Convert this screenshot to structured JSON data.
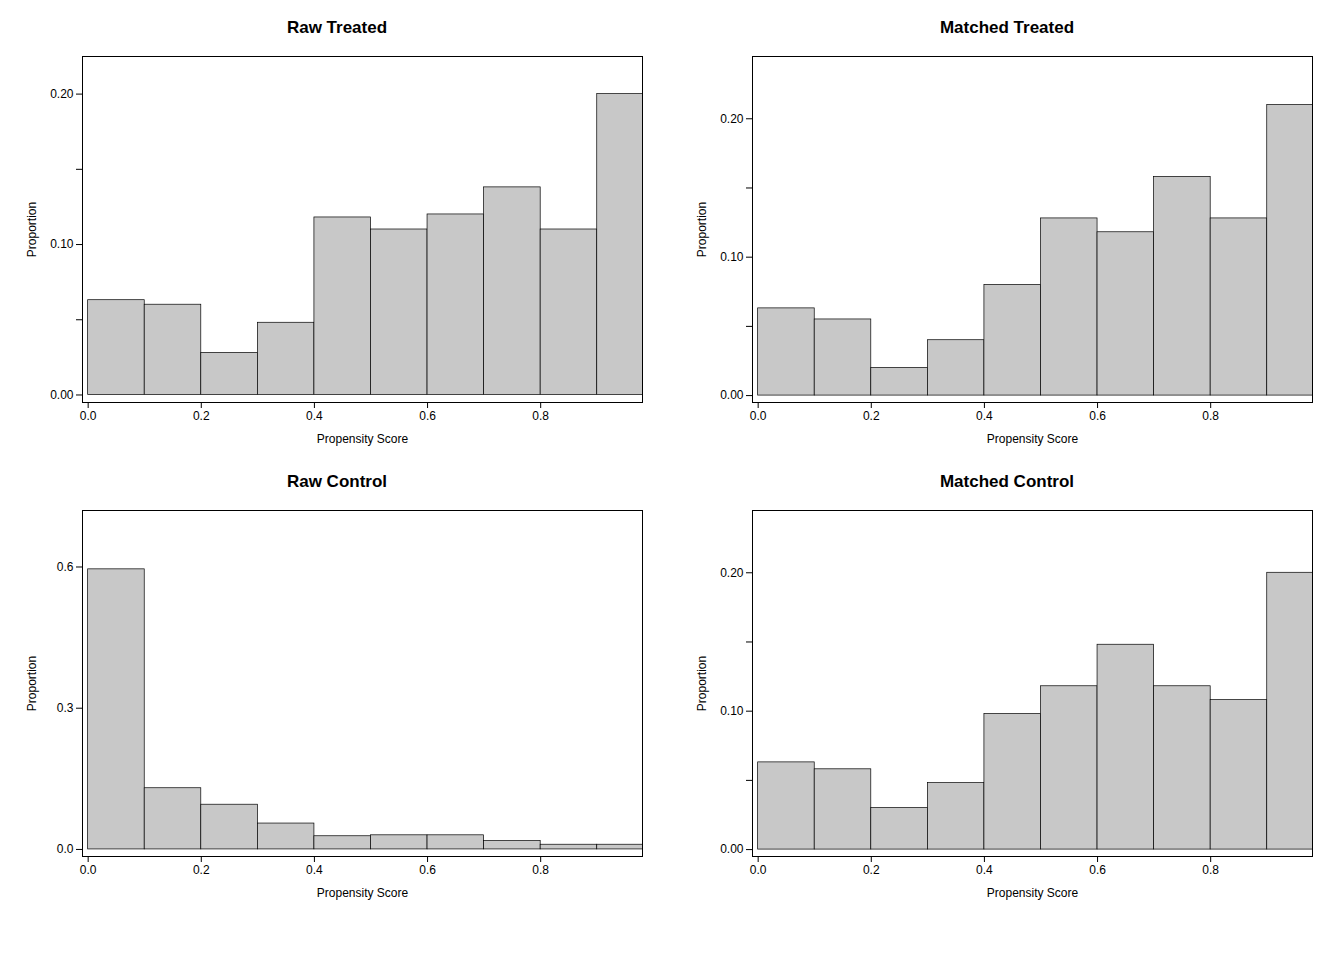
{
  "chart_data": [
    {
      "type": "histogram",
      "title": "Raw Treated",
      "xlabel": "Propensity Score",
      "ylabel": "Proportion",
      "bins": [
        0.0,
        0.1,
        0.2,
        0.3,
        0.4,
        0.5,
        0.6,
        0.7,
        0.8,
        0.9,
        1.0
      ],
      "values": [
        0.063,
        0.06,
        0.028,
        0.048,
        0.118,
        0.11,
        0.12,
        0.138,
        0.11,
        0.2
      ],
      "color": "#c8c8c8",
      "xlim": [
        -0.01,
        0.98
      ],
      "ylim": [
        -0.005,
        0.225
      ],
      "xticks": [
        {
          "value": 0.0,
          "label": "0.0"
        },
        {
          "value": 0.2,
          "label": "0.2"
        },
        {
          "value": 0.4,
          "label": "0.4"
        },
        {
          "value": 0.6,
          "label": "0.6"
        },
        {
          "value": 0.8,
          "label": "0.8"
        }
      ],
      "yticks": [
        {
          "value": 0.0,
          "label": "0.00"
        },
        {
          "value": 0.05,
          "label": null
        },
        {
          "value": 0.1,
          "label": "0.10"
        },
        {
          "value": 0.15,
          "label": null
        },
        {
          "value": 0.2,
          "label": "0.20"
        }
      ]
    },
    {
      "type": "histogram",
      "title": "Matched Treated",
      "xlabel": "Propensity Score",
      "ylabel": "Proportion",
      "bins": [
        0.0,
        0.1,
        0.2,
        0.3,
        0.4,
        0.5,
        0.6,
        0.7,
        0.8,
        0.9,
        1.0
      ],
      "values": [
        0.063,
        0.055,
        0.02,
        0.04,
        0.08,
        0.128,
        0.118,
        0.158,
        0.128,
        0.21
      ],
      "color": "#c8c8c8",
      "xlim": [
        -0.01,
        0.98
      ],
      "ylim": [
        -0.005,
        0.245
      ],
      "xticks": [
        {
          "value": 0.0,
          "label": "0.0"
        },
        {
          "value": 0.2,
          "label": "0.2"
        },
        {
          "value": 0.4,
          "label": "0.4"
        },
        {
          "value": 0.6,
          "label": "0.6"
        },
        {
          "value": 0.8,
          "label": "0.8"
        }
      ],
      "yticks": [
        {
          "value": 0.0,
          "label": "0.00"
        },
        {
          "value": 0.05,
          "label": null
        },
        {
          "value": 0.1,
          "label": "0.10"
        },
        {
          "value": 0.15,
          "label": null
        },
        {
          "value": 0.2,
          "label": "0.20"
        }
      ]
    },
    {
      "type": "histogram",
      "title": "Raw Control",
      "xlabel": "Propensity Score",
      "ylabel": "Proportion",
      "bins": [
        0.0,
        0.1,
        0.2,
        0.3,
        0.4,
        0.5,
        0.6,
        0.7,
        0.8,
        0.9,
        1.0
      ],
      "values": [
        0.595,
        0.13,
        0.095,
        0.055,
        0.028,
        0.03,
        0.03,
        0.018,
        0.01,
        0.01
      ],
      "color": "#c8c8c8",
      "xlim": [
        -0.01,
        0.98
      ],
      "ylim": [
        -0.015,
        0.72
      ],
      "xticks": [
        {
          "value": 0.0,
          "label": "0.0"
        },
        {
          "value": 0.2,
          "label": "0.2"
        },
        {
          "value": 0.4,
          "label": "0.4"
        },
        {
          "value": 0.6,
          "label": "0.6"
        },
        {
          "value": 0.8,
          "label": "0.8"
        }
      ],
      "yticks": [
        {
          "value": 0.0,
          "label": "0.0"
        },
        {
          "value": 0.3,
          "label": "0.3"
        },
        {
          "value": 0.6,
          "label": "0.6"
        }
      ]
    },
    {
      "type": "histogram",
      "title": "Matched Control",
      "xlabel": "Propensity Score",
      "ylabel": "Proportion",
      "bins": [
        0.0,
        0.1,
        0.2,
        0.3,
        0.4,
        0.5,
        0.6,
        0.7,
        0.8,
        0.9,
        1.0
      ],
      "values": [
        0.063,
        0.058,
        0.03,
        0.048,
        0.098,
        0.118,
        0.148,
        0.118,
        0.108,
        0.2
      ],
      "color": "#c8c8c8",
      "xlim": [
        -0.01,
        0.98
      ],
      "ylim": [
        -0.005,
        0.245
      ],
      "xticks": [
        {
          "value": 0.0,
          "label": "0.0"
        },
        {
          "value": 0.2,
          "label": "0.2"
        },
        {
          "value": 0.4,
          "label": "0.4"
        },
        {
          "value": 0.6,
          "label": "0.6"
        },
        {
          "value": 0.8,
          "label": "0.8"
        }
      ],
      "yticks": [
        {
          "value": 0.0,
          "label": "0.00"
        },
        {
          "value": 0.05,
          "label": null
        },
        {
          "value": 0.1,
          "label": "0.10"
        },
        {
          "value": 0.15,
          "label": null
        },
        {
          "value": 0.2,
          "label": "0.20"
        }
      ]
    }
  ]
}
